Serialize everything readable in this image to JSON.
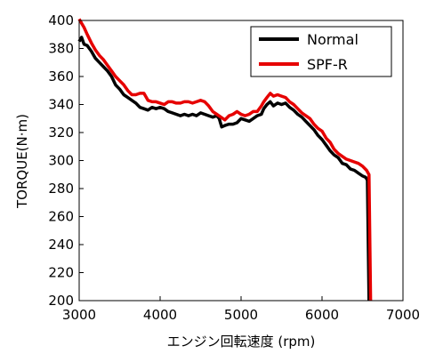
{
  "chart_data": {
    "type": "line",
    "xlabel": "エンジン回転速度 (rpm)",
    "ylabel": "TORQUE(N·m)",
    "xlim": [
      3000,
      7000
    ],
    "ylim": [
      200,
      400
    ],
    "xticks": [
      3000,
      4000,
      5000,
      6000,
      7000
    ],
    "yticks": [
      200,
      220,
      240,
      260,
      280,
      300,
      320,
      340,
      360,
      380,
      400
    ],
    "grid": false,
    "legend_position": "top-right",
    "series": [
      {
        "name": "Normal",
        "color": "#000000",
        "points": [
          [
            3000,
            385
          ],
          [
            3030,
            388
          ],
          [
            3060,
            383
          ],
          [
            3100,
            382
          ],
          [
            3150,
            378
          ],
          [
            3200,
            373
          ],
          [
            3250,
            370
          ],
          [
            3300,
            367
          ],
          [
            3350,
            364
          ],
          [
            3400,
            360
          ],
          [
            3450,
            354
          ],
          [
            3500,
            351
          ],
          [
            3550,
            347
          ],
          [
            3600,
            345
          ],
          [
            3650,
            343
          ],
          [
            3700,
            341
          ],
          [
            3750,
            338
          ],
          [
            3800,
            337
          ],
          [
            3850,
            336
          ],
          [
            3900,
            338
          ],
          [
            3950,
            337
          ],
          [
            4000,
            338
          ],
          [
            4050,
            337
          ],
          [
            4100,
            335
          ],
          [
            4150,
            334
          ],
          [
            4200,
            333
          ],
          [
            4250,
            332
          ],
          [
            4300,
            333
          ],
          [
            4350,
            332
          ],
          [
            4400,
            333
          ],
          [
            4450,
            332
          ],
          [
            4500,
            334
          ],
          [
            4550,
            333
          ],
          [
            4600,
            332
          ],
          [
            4650,
            331
          ],
          [
            4700,
            332
          ],
          [
            4730,
            330
          ],
          [
            4760,
            324
          ],
          [
            4800,
            325
          ],
          [
            4850,
            326
          ],
          [
            4900,
            326
          ],
          [
            4950,
            327
          ],
          [
            5000,
            330
          ],
          [
            5050,
            329
          ],
          [
            5100,
            328
          ],
          [
            5150,
            330
          ],
          [
            5200,
            332
          ],
          [
            5250,
            333
          ],
          [
            5280,
            337
          ],
          [
            5320,
            340
          ],
          [
            5360,
            342
          ],
          [
            5400,
            339
          ],
          [
            5450,
            341
          ],
          [
            5500,
            340
          ],
          [
            5550,
            341
          ],
          [
            5600,
            338
          ],
          [
            5650,
            336
          ],
          [
            5700,
            333
          ],
          [
            5750,
            331
          ],
          [
            5800,
            328
          ],
          [
            5850,
            325
          ],
          [
            5900,
            322
          ],
          [
            5950,
            318
          ],
          [
            6000,
            315
          ],
          [
            6050,
            311
          ],
          [
            6100,
            307
          ],
          [
            6150,
            304
          ],
          [
            6200,
            302
          ],
          [
            6250,
            298
          ],
          [
            6300,
            297
          ],
          [
            6350,
            294
          ],
          [
            6400,
            293
          ],
          [
            6450,
            291
          ],
          [
            6500,
            289
          ],
          [
            6540,
            288
          ],
          [
            6560,
            286
          ],
          [
            6580,
            200
          ]
        ]
      },
      {
        "name": "SPF-R",
        "color": "#e60000",
        "points": [
          [
            3000,
            401
          ],
          [
            3030,
            398
          ],
          [
            3060,
            395
          ],
          [
            3100,
            390
          ],
          [
            3150,
            384
          ],
          [
            3200,
            379
          ],
          [
            3250,
            375
          ],
          [
            3300,
            372
          ],
          [
            3350,
            368
          ],
          [
            3400,
            364
          ],
          [
            3450,
            360
          ],
          [
            3500,
            357
          ],
          [
            3550,
            354
          ],
          [
            3600,
            350
          ],
          [
            3650,
            347
          ],
          [
            3700,
            347
          ],
          [
            3750,
            348
          ],
          [
            3800,
            348
          ],
          [
            3850,
            343
          ],
          [
            3900,
            342
          ],
          [
            3950,
            342
          ],
          [
            4000,
            341
          ],
          [
            4050,
            340
          ],
          [
            4100,
            342
          ],
          [
            4150,
            342
          ],
          [
            4200,
            341
          ],
          [
            4250,
            341
          ],
          [
            4300,
            342
          ],
          [
            4350,
            342
          ],
          [
            4400,
            341
          ],
          [
            4450,
            342
          ],
          [
            4500,
            343
          ],
          [
            4550,
            342
          ],
          [
            4600,
            339
          ],
          [
            4650,
            335
          ],
          [
            4700,
            333
          ],
          [
            4750,
            331
          ],
          [
            4800,
            329
          ],
          [
            4850,
            332
          ],
          [
            4900,
            333
          ],
          [
            4950,
            335
          ],
          [
            5000,
            333
          ],
          [
            5050,
            332
          ],
          [
            5100,
            333
          ],
          [
            5150,
            335
          ],
          [
            5200,
            335
          ],
          [
            5250,
            339
          ],
          [
            5280,
            342
          ],
          [
            5320,
            345
          ],
          [
            5360,
            348
          ],
          [
            5400,
            346
          ],
          [
            5450,
            347
          ],
          [
            5500,
            346
          ],
          [
            5550,
            345
          ],
          [
            5600,
            342
          ],
          [
            5650,
            340
          ],
          [
            5700,
            337
          ],
          [
            5750,
            334
          ],
          [
            5800,
            332
          ],
          [
            5850,
            330
          ],
          [
            5900,
            326
          ],
          [
            5950,
            323
          ],
          [
            6000,
            321
          ],
          [
            6050,
            316
          ],
          [
            6100,
            313
          ],
          [
            6150,
            308
          ],
          [
            6200,
            305
          ],
          [
            6250,
            303
          ],
          [
            6300,
            301
          ],
          [
            6350,
            300
          ],
          [
            6400,
            299
          ],
          [
            6450,
            298
          ],
          [
            6500,
            296
          ],
          [
            6550,
            293
          ],
          [
            6580,
            290
          ],
          [
            6600,
            200
          ]
        ]
      }
    ]
  }
}
